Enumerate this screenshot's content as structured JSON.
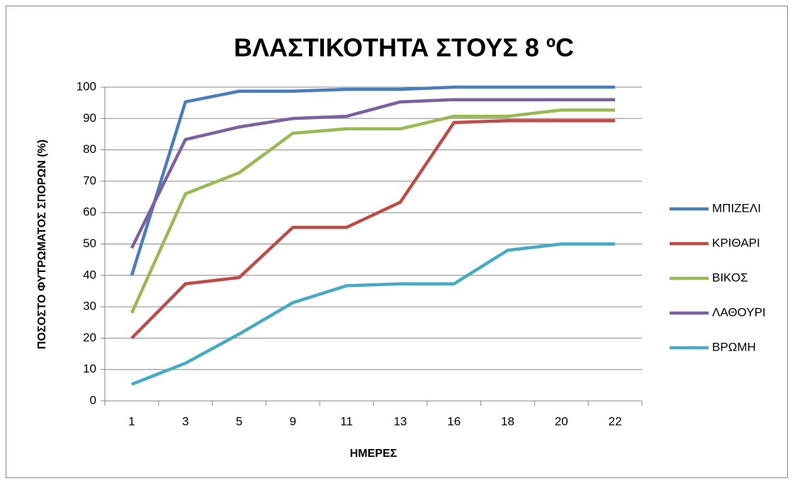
{
  "chart_data": {
    "type": "line",
    "title": "ΒΛΑΣΤΙΚΟΤΗΤΑ ΣΤΟΥΣ 8 ºC",
    "x_label": "ΗΜΕΡΕΣ",
    "y_label": "ΠΟΣΟΣΤΟ ΦΥΤΡΩΜΑΤΟΣ ΣΠΟΡΩΝ (%)",
    "categories": [
      "1",
      "3",
      "5",
      "9",
      "11",
      "13",
      "16",
      "18",
      "20",
      "22"
    ],
    "series": [
      {
        "name": "ΜΠΙΖΕΛΙ",
        "color": "#4a7ebb",
        "values": [
          40,
          95.3,
          98.7,
          98.7,
          99.3,
          99.3,
          100,
          100,
          100,
          100
        ]
      },
      {
        "name": "ΚΡΙΘΑΡΙ",
        "color": "#be4b48",
        "values": [
          20,
          37.3,
          39.3,
          55.3,
          55.3,
          63.3,
          88.7,
          89.3,
          89.3,
          89.3
        ]
      },
      {
        "name": "ΒΙΚΟΣ",
        "color": "#98b954",
        "values": [
          28,
          66,
          72.7,
          85.3,
          86.7,
          86.7,
          90.7,
          90.7,
          92.7,
          92.7
        ]
      },
      {
        "name": "ΛΑΘΟΥΡΙ",
        "color": "#7d60a0",
        "values": [
          48.7,
          83.3,
          87.3,
          90,
          90.7,
          95.3,
          96,
          96,
          96,
          96
        ]
      },
      {
        "name": "ΒΡΩΜΗ",
        "color": "#46aac5",
        "values": [
          5.3,
          12,
          21.3,
          31.3,
          36.7,
          37.3,
          37.3,
          48,
          50,
          50
        ]
      }
    ],
    "ylim": [
      0,
      100
    ],
    "yticks": [
      0,
      10,
      20,
      30,
      40,
      50,
      60,
      70,
      80,
      90,
      100
    ],
    "grid": true,
    "legend": "right"
  }
}
